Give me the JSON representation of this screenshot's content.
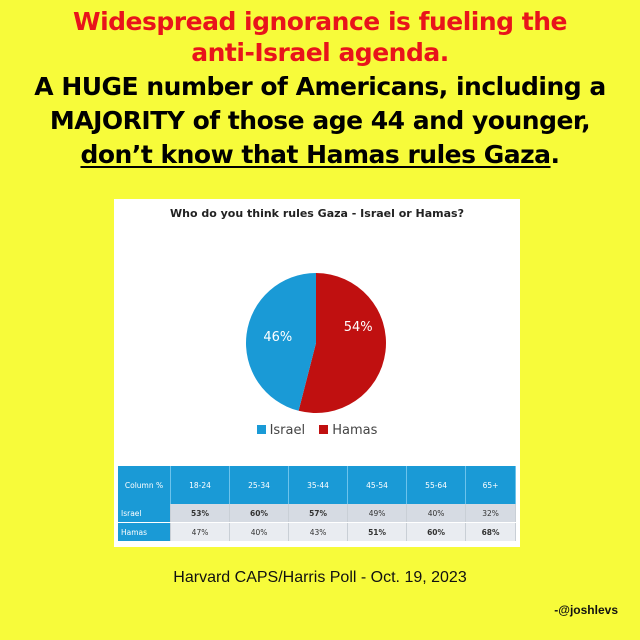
{
  "headline": {
    "line1": "Widespread ignorance is fueling the",
    "line2": "anti-Israel agenda.",
    "line3": "A HUGE number of Americans, including a",
    "line4": "MAJORITY of those age 44 and younger,",
    "line5_underlined": "don’t know that Hamas rules Gaza",
    "line5_period": "."
  },
  "colors": {
    "background": "#f7fb3a",
    "headline_red": "#e8141b",
    "israel": "#1a9ad6",
    "hamas": "#c01010",
    "table_header": "#1a9ad6"
  },
  "chart_data": [
    {
      "type": "pie",
      "title": "Who do you think rules Gaza - Israel or Hamas?",
      "labels": [
        "Israel",
        "Hamas"
      ],
      "values": [
        46,
        54
      ],
      "data_labels": [
        "46%",
        "54%"
      ],
      "legend_placement": "bottom"
    },
    {
      "type": "table",
      "header_label": "Column %",
      "columns": [
        "18-24",
        "25-34",
        "35-44",
        "45-54",
        "55-64",
        "65+"
      ],
      "rows": [
        {
          "name": "Israel",
          "values": [
            "53%",
            "60%",
            "57%",
            "49%",
            "40%",
            "32%"
          ]
        },
        {
          "name": "Hamas",
          "values": [
            "47%",
            "40%",
            "43%",
            "51%",
            "60%",
            "68%"
          ]
        }
      ],
      "bold_cells": [
        [
          0,
          0
        ],
        [
          0,
          1
        ],
        [
          0,
          2
        ],
        [
          1,
          3
        ],
        [
          1,
          4
        ],
        [
          1,
          5
        ]
      ]
    }
  ],
  "source": "Harvard CAPS/Harris Poll - Oct. 19, 2023",
  "handle": "-@joshlevs"
}
